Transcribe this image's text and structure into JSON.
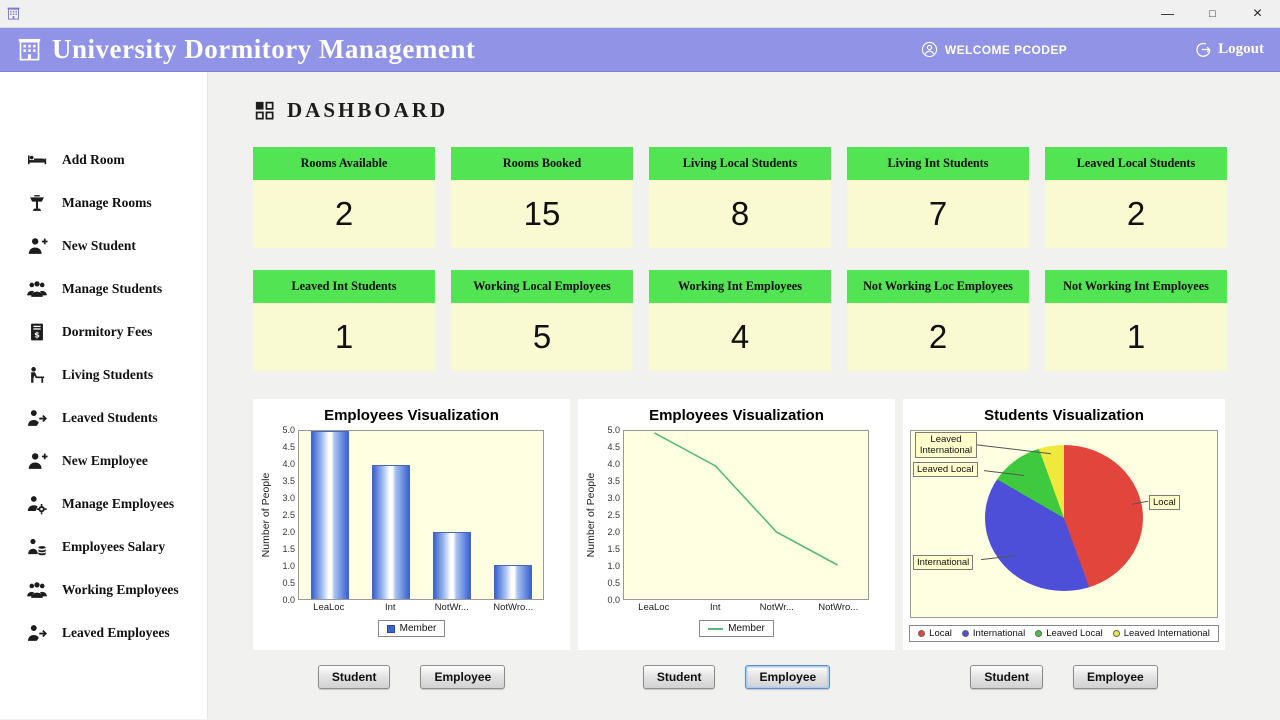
{
  "window": {
    "titlebar": {
      "minimize": "—",
      "maximize": "□",
      "close": "×"
    }
  },
  "header": {
    "title": "University Dormitory Management",
    "welcome": "WELCOME PCODEP",
    "logout": "Logout"
  },
  "sidebar": {
    "items": [
      {
        "label": "Add Room",
        "icon": "add-room-icon"
      },
      {
        "label": "Manage Rooms",
        "icon": "manage-rooms-icon"
      },
      {
        "label": "New Student",
        "icon": "new-student-icon"
      },
      {
        "label": "Manage Students",
        "icon": "manage-students-icon"
      },
      {
        "label": "Dormitory Fees",
        "icon": "dormitory-fees-icon"
      },
      {
        "label": "Living Students",
        "icon": "living-students-icon"
      },
      {
        "label": "Leaved Students",
        "icon": "leaved-students-icon"
      },
      {
        "label": "New Employee",
        "icon": "new-employee-icon"
      },
      {
        "label": "Manage Employees",
        "icon": "manage-employees-icon"
      },
      {
        "label": "Employees Salary",
        "icon": "employees-salary-icon"
      },
      {
        "label": "Working Employees",
        "icon": "working-employees-icon"
      },
      {
        "label": "Leaved Employees",
        "icon": "leaved-employees-icon"
      }
    ]
  },
  "dashboard": {
    "title": "DASHBOARD",
    "cards": [
      {
        "label": "Rooms Available",
        "value": "2"
      },
      {
        "label": "Rooms Booked",
        "value": "15"
      },
      {
        "label": "Living Local Students",
        "value": "8"
      },
      {
        "label": "Living Int Students",
        "value": "7"
      },
      {
        "label": "Leaved Local Students",
        "value": "2"
      },
      {
        "label": "Leaved Int Students",
        "value": "1"
      },
      {
        "label": "Working Local Employees",
        "value": "5"
      },
      {
        "label": "Working Int Employees",
        "value": "4"
      },
      {
        "label": "Not Working Loc Employees",
        "value": "2"
      },
      {
        "label": "Not Working Int Employees",
        "value": "1"
      }
    ],
    "colors": {
      "header_bar": "#9093e6",
      "card_header": "#52e452",
      "card_body": "#fafad2",
      "plot_bg": "#ffffe1"
    }
  },
  "chart_data": [
    {
      "type": "bar",
      "title": "Employees Visualization",
      "categories": [
        "LeaLoc",
        "Int",
        "NotWr...",
        "NotWro..."
      ],
      "series": [
        {
          "name": "Member",
          "values": [
            5,
            4,
            2,
            1
          ]
        }
      ],
      "ylabel": "Number of People",
      "ylim": [
        0,
        5
      ],
      "ytick_step": 0.5,
      "bar_color": "#3a62d0",
      "legend_position": "bottom",
      "grid": false
    },
    {
      "type": "line",
      "title": "Employees Visualization",
      "categories": [
        "LeaLoc",
        "Int",
        "NotWr...",
        "NotWro..."
      ],
      "series": [
        {
          "name": "Member",
          "values": [
            5,
            4,
            2,
            1
          ]
        }
      ],
      "ylabel": "Number of People",
      "ylim": [
        0,
        5
      ],
      "ytick_step": 0.5,
      "line_color": "#58b87c",
      "legend_position": "bottom",
      "grid": false
    },
    {
      "type": "pie",
      "title": "Students Visualization",
      "labels": [
        "Local",
        "International",
        "Leaved Local",
        "Leaved International"
      ],
      "values": [
        8,
        7,
        2,
        1
      ],
      "colors": [
        "#e2453c",
        "#4d4fd8",
        "#3fc93f",
        "#efe93d"
      ],
      "legend_position": "bottom"
    }
  ],
  "footer": {
    "student": "Student",
    "employee": "Employee"
  }
}
